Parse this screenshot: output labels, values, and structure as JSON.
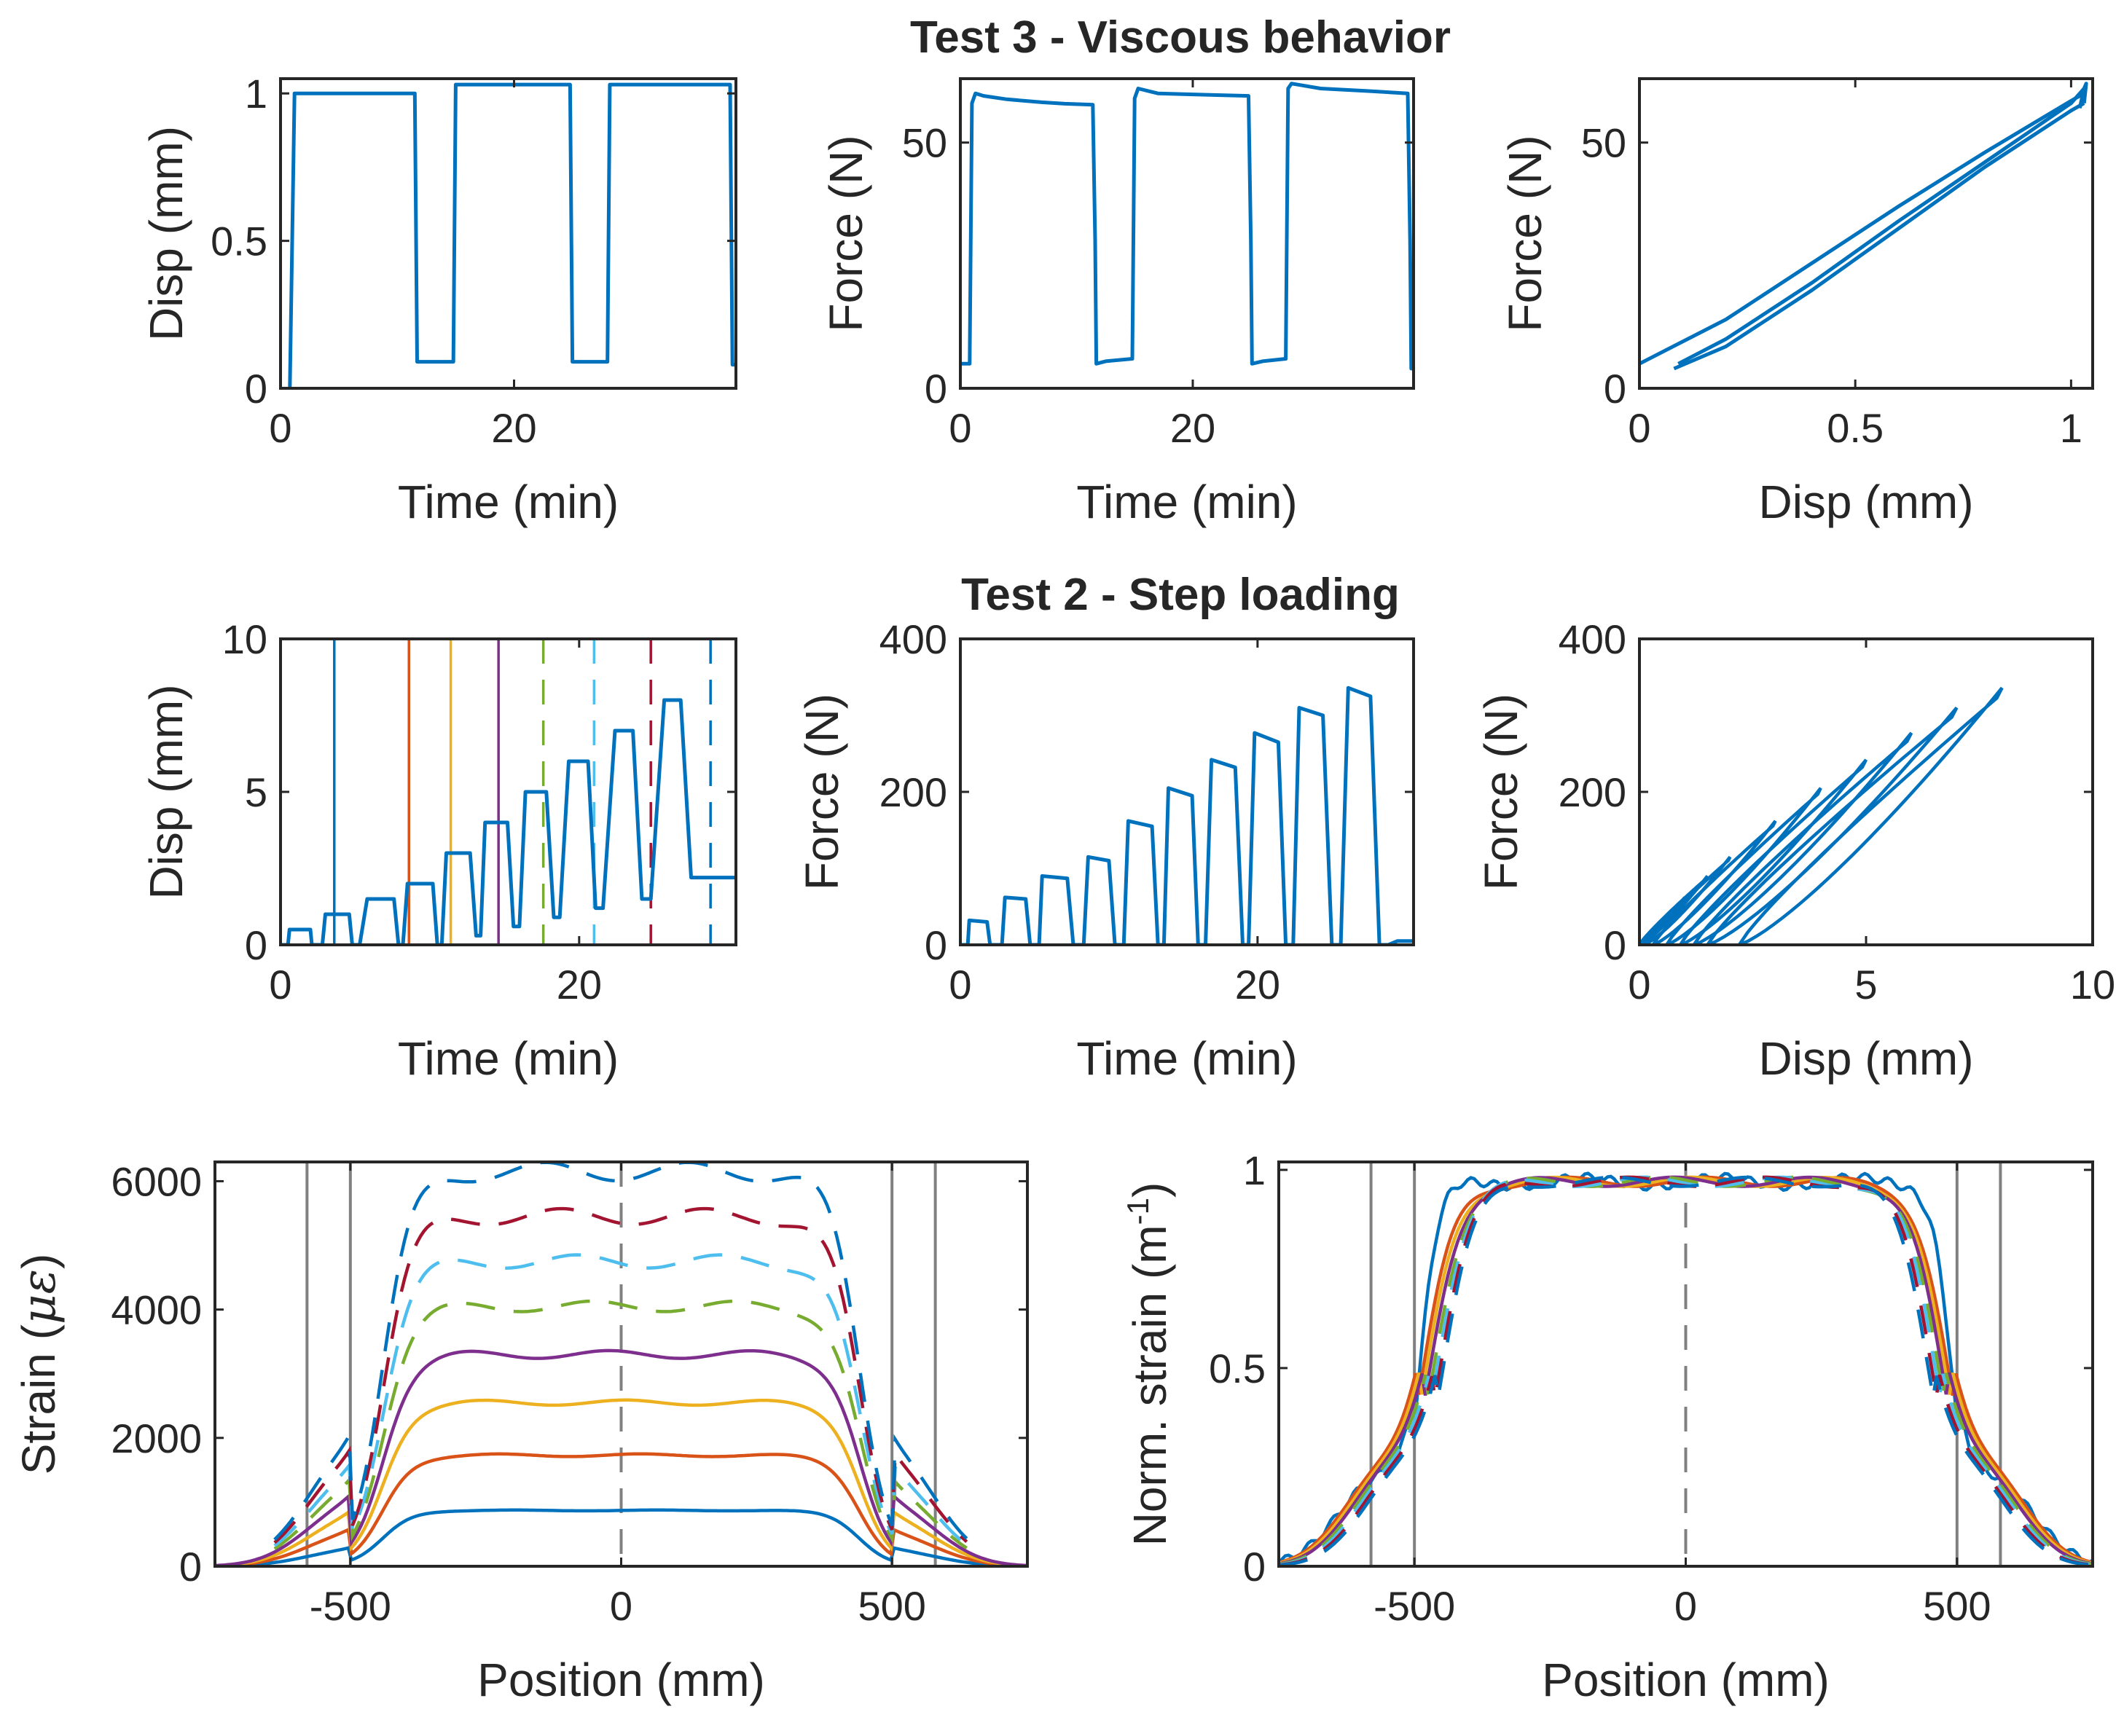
{
  "headings": {
    "test3": "Test 3 - Viscous behavior",
    "test2": "Test 2 - Step loading"
  },
  "colors": {
    "primary": "#0072BD",
    "step_lines": [
      "#0072BD",
      "#D95319",
      "#EDB120",
      "#7E2F8E",
      "#77AC30",
      "#4DBEEE",
      "#A2142F",
      "#0072BD"
    ],
    "grey": "#808080"
  },
  "chart_data": [
    {
      "id": "p1",
      "type": "line",
      "xlabel": "Time (min)",
      "ylabel": "Disp (mm)",
      "xlim": [
        0,
        39
      ],
      "ylim": [
        0,
        1.05
      ],
      "xticks": [
        0,
        20
      ],
      "xtick_labels": [
        "0",
        "20"
      ],
      "yticks": [
        0,
        0.5,
        1
      ],
      "ytick_labels": [
        "0",
        "0.5",
        "1"
      ],
      "series": [
        {
          "x": [
            0.8,
            1.2,
            11.5,
            11.7,
            14.8,
            15.0,
            24.8,
            25.0,
            28.0,
            28.2,
            38.5,
            38.7,
            39
          ],
          "y": [
            0.0,
            1.0,
            1.0,
            0.09,
            0.09,
            1.03,
            1.03,
            0.09,
            0.09,
            1.03,
            1.03,
            0.08,
            0.08
          ]
        }
      ]
    },
    {
      "id": "p2",
      "type": "line",
      "xlabel": "Time (min)",
      "ylabel": "Force (N)",
      "xlim": [
        0,
        39
      ],
      "ylim": [
        0,
        63
      ],
      "xticks": [
        0,
        20
      ],
      "xtick_labels": [
        "0",
        "20"
      ],
      "yticks": [
        0,
        50
      ],
      "ytick_labels": [
        "0",
        "50"
      ],
      "series": [
        {
          "x": [
            0,
            0.8,
            1.0,
            1.3,
            2,
            4,
            7,
            9,
            11.4,
            11.6,
            11.7,
            12.5,
            14.8,
            15.0,
            15.3,
            17,
            20,
            24.8,
            25.0,
            25.1,
            26,
            28.0,
            28.2,
            28.5,
            31,
            35,
            38.5,
            38.7,
            38.8,
            39
          ],
          "y": [
            5,
            5,
            58,
            60,
            59.5,
            58.8,
            58.2,
            57.9,
            57.7,
            30,
            5,
            5.5,
            6,
            59,
            61,
            60,
            59.8,
            59.5,
            30,
            5,
            5.5,
            6,
            61,
            62,
            61,
            60.5,
            60,
            30,
            4,
            4.5
          ]
        }
      ]
    },
    {
      "id": "p3",
      "type": "line",
      "xlabel": "Disp (mm)",
      "ylabel": "Force (N)",
      "xlim": [
        0,
        1.05
      ],
      "ylim": [
        0,
        63
      ],
      "xticks": [
        0,
        0.5,
        1
      ],
      "xtick_labels": [
        "0",
        "0.5",
        "1"
      ],
      "yticks": [
        0,
        50
      ],
      "ytick_labels": [
        "0",
        "50"
      ],
      "series": [
        {
          "x": [
            0,
            0.2,
            0.4,
            0.6,
            0.8,
            1.0,
            1.03
          ],
          "y": [
            5,
            14,
            25.5,
            37,
            48,
            58.5,
            60
          ]
        },
        {
          "x": [
            0.08,
            0.2,
            0.4,
            0.6,
            0.8,
            1.0,
            1.03
          ],
          "y": [
            4,
            8.5,
            20,
            32.5,
            45,
            56.5,
            58
          ]
        },
        {
          "x": [
            0.09,
            0.2,
            0.4,
            0.6,
            0.8,
            1.0,
            1.03
          ],
          "y": [
            5,
            10,
            21.5,
            34,
            46,
            58,
            61
          ]
        },
        {
          "x": [
            1.02,
            1.03,
            1.035,
            1.03
          ],
          "y": [
            57,
            61,
            62,
            58
          ]
        }
      ]
    },
    {
      "id": "p4",
      "type": "line",
      "xlabel": "Time (min)",
      "ylabel": "Disp (mm)",
      "xlim": [
        0,
        30.5
      ],
      "ylim": [
        0,
        10
      ],
      "xticks": [
        0,
        20
      ],
      "xtick_labels": [
        "0",
        "20"
      ],
      "yticks": [
        0,
        5,
        10
      ],
      "ytick_labels": [
        "0",
        "5",
        "10"
      ],
      "vlines": [
        {
          "x": 3.6,
          "color": "#0072BD",
          "dashed": false
        },
        {
          "x": 8.6,
          "color": "#D95319",
          "dashed": false
        },
        {
          "x": 11.4,
          "color": "#EDB120",
          "dashed": false
        },
        {
          "x": 14.6,
          "color": "#7E2F8E",
          "dashed": false
        },
        {
          "x": 17.6,
          "color": "#77AC30",
          "dashed": true
        },
        {
          "x": 21.0,
          "color": "#4DBEEE",
          "dashed": true
        },
        {
          "x": 24.8,
          "color": "#A2142F",
          "dashed": true
        },
        {
          "x": 28.8,
          "color": "#0072BD",
          "dashed": true
        }
      ],
      "series": [
        {
          "x": [
            0,
            0.5,
            0.6,
            2,
            2.1,
            2.8,
            3.0,
            4.6,
            4.8,
            5.1,
            5.3,
            5.8,
            6.1,
            7.6,
            7.9,
            8.2,
            8.5,
            10.2,
            10.5,
            10.8,
            11.1,
            12.7,
            13.1,
            13.4,
            13.7,
            15.2,
            15.6,
            16.0,
            16.4,
            17.8,
            18.3,
            18.7,
            19.3,
            20.6,
            21.1,
            21.6,
            22.4,
            23.6,
            24.2,
            24.8,
            25.7,
            26.8,
            27.5,
            28.2,
            29.3,
            29.8,
            30.5
          ],
          "y": [
            0,
            0,
            0.5,
            0.5,
            0,
            0,
            1.0,
            1.0,
            0,
            0,
            0,
            1.5,
            1.5,
            1.5,
            0,
            0,
            2.0,
            2.0,
            0,
            0,
            3.0,
            3.0,
            0.3,
            0.3,
            4.0,
            4.0,
            0.6,
            0.6,
            5.0,
            5.0,
            0.9,
            0.9,
            6.0,
            6.0,
            1.2,
            1.2,
            7.0,
            7.0,
            1.5,
            1.5,
            8.0,
            8.0,
            2.2,
            2.2,
            2.2,
            2.2,
            2.2
          ]
        }
      ]
    },
    {
      "id": "p5",
      "type": "line",
      "xlabel": "Time (min)",
      "ylabel": "Force (N)",
      "xlim": [
        0,
        30.5
      ],
      "ylim": [
        0,
        400
      ],
      "xticks": [
        0,
        20
      ],
      "xtick_labels": [
        "0",
        "20"
      ],
      "yticks": [
        0,
        200,
        400
      ],
      "ytick_labels": [
        "0",
        "200",
        "400"
      ],
      "series": [
        {
          "x": [
            0,
            0.5,
            0.6,
            1.8,
            2.0,
            2.8,
            3.0,
            4.4,
            4.7,
            5.3,
            5.5,
            7.2,
            7.6,
            8.3,
            8.6,
            10.0,
            10.4,
            11.0,
            11.3,
            12.9,
            13.3,
            13.7,
            14.0,
            15.6,
            16.0,
            16.5,
            16.9,
            18.5,
            19.0,
            19.4,
            19.8,
            21.4,
            21.9,
            22.4,
            22.8,
            24.4,
            25.0,
            25.6,
            26.1,
            27.6,
            28.2,
            28.8,
            29.4,
            30.5
          ],
          "y": [
            0,
            0,
            32,
            30,
            0,
            0,
            62,
            60,
            0,
            0,
            90,
            87,
            0,
            0,
            115,
            110,
            0,
            0,
            162,
            155,
            0,
            0,
            205,
            195,
            0,
            0,
            242,
            232,
            0,
            0,
            277,
            265,
            0,
            0,
            310,
            300,
            0,
            0,
            336,
            325,
            0,
            0,
            5,
            5
          ]
        }
      ]
    },
    {
      "id": "p6",
      "type": "line",
      "xlabel": "Disp (mm)",
      "ylabel": "Force (N)",
      "xlim": [
        0,
        10
      ],
      "ylim": [
        0,
        400
      ],
      "xticks": [
        0,
        5,
        10
      ],
      "xtick_labels": [
        "0",
        "5",
        "10"
      ],
      "yticks": [
        0,
        200,
        400
      ],
      "ytick_labels": [
        "0",
        "200",
        "400"
      ],
      "loops": [
        {
          "x0": 0.0,
          "x1": 0.5,
          "peak": 32
        },
        {
          "x0": 0.0,
          "x1": 1.0,
          "peak": 62
        },
        {
          "x0": 0.0,
          "x1": 1.5,
          "peak": 90
        },
        {
          "x0": 0.1,
          "x1": 2.0,
          "peak": 115
        },
        {
          "x0": 0.3,
          "x1": 3.0,
          "peak": 162
        },
        {
          "x0": 0.6,
          "x1": 4.0,
          "peak": 205
        },
        {
          "x0": 0.9,
          "x1": 5.0,
          "peak": 242
        },
        {
          "x0": 1.2,
          "x1": 6.0,
          "peak": 277
        },
        {
          "x0": 1.5,
          "x1": 7.0,
          "peak": 310
        },
        {
          "x0": 2.2,
          "x1": 8.0,
          "peak": 336
        }
      ]
    },
    {
      "id": "p7",
      "type": "line",
      "xlabel": "Position (mm)",
      "ylabel": "Strain (με)",
      "ylabel_main": "Strain (",
      "ylabel_symbol": "με",
      "ylabel_end": ")",
      "xlim": [
        -750,
        750
      ],
      "ylim": [
        0,
        6300
      ],
      "xticks": [
        -500,
        0,
        500
      ],
      "xtick_labels": [
        "-500",
        "0",
        "500"
      ],
      "yticks": [
        0,
        2000,
        4000,
        6000
      ],
      "ytick_labels": [
        "0",
        "2000",
        "4000",
        "6000"
      ],
      "grey_lines": [
        -580,
        -500,
        500,
        580
      ],
      "center_dashed": 0,
      "levels": [
        {
          "plateau": 870,
          "color": "#0072BD",
          "dashed": false
        },
        {
          "plateau": 1730,
          "color": "#D95319",
          "dashed": false
        },
        {
          "plateau": 2550,
          "color": "#EDB120",
          "dashed": false
        },
        {
          "plateau": 3300,
          "color": "#7E2F8E",
          "dashed": false
        },
        {
          "plateau": 4050,
          "color": "#77AC30",
          "dashed": true
        },
        {
          "plateau": 4750,
          "color": "#4DBEEE",
          "dashed": true
        },
        {
          "plateau": 5450,
          "color": "#A2142F",
          "dashed": true
        },
        {
          "plateau": 6150,
          "color": "#0072BD",
          "dashed": true
        }
      ]
    },
    {
      "id": "p8",
      "type": "line",
      "xlabel": "Position (mm)",
      "ylabel": "Norm. strain (m",
      "ylabel_sup": "-1",
      "ylabel_end": ")",
      "xlim": [
        -750,
        750
      ],
      "ylim": [
        0,
        1.02
      ],
      "xticks": [
        -500,
        0,
        500
      ],
      "xtick_labels": [
        "-500",
        "0",
        "500"
      ],
      "yticks": [
        0,
        0.5,
        1
      ],
      "ytick_labels": [
        "0",
        "0.5",
        "1"
      ],
      "grey_lines": [
        -580,
        -500,
        500,
        580
      ],
      "center_dashed": 0,
      "levels": [
        {
          "plateau": 0.97,
          "color": "#0072BD",
          "dashed": false
        },
        {
          "plateau": 0.97,
          "color": "#D95319",
          "dashed": false
        },
        {
          "plateau": 0.97,
          "color": "#EDB120",
          "dashed": false
        },
        {
          "plateau": 0.97,
          "color": "#7E2F8E",
          "dashed": false
        },
        {
          "plateau": 0.97,
          "color": "#77AC30",
          "dashed": true
        },
        {
          "plateau": 0.97,
          "color": "#4DBEEE",
          "dashed": true
        },
        {
          "plateau": 0.97,
          "color": "#A2142F",
          "dashed": true
        },
        {
          "plateau": 0.97,
          "color": "#0072BD",
          "dashed": true
        }
      ]
    }
  ]
}
